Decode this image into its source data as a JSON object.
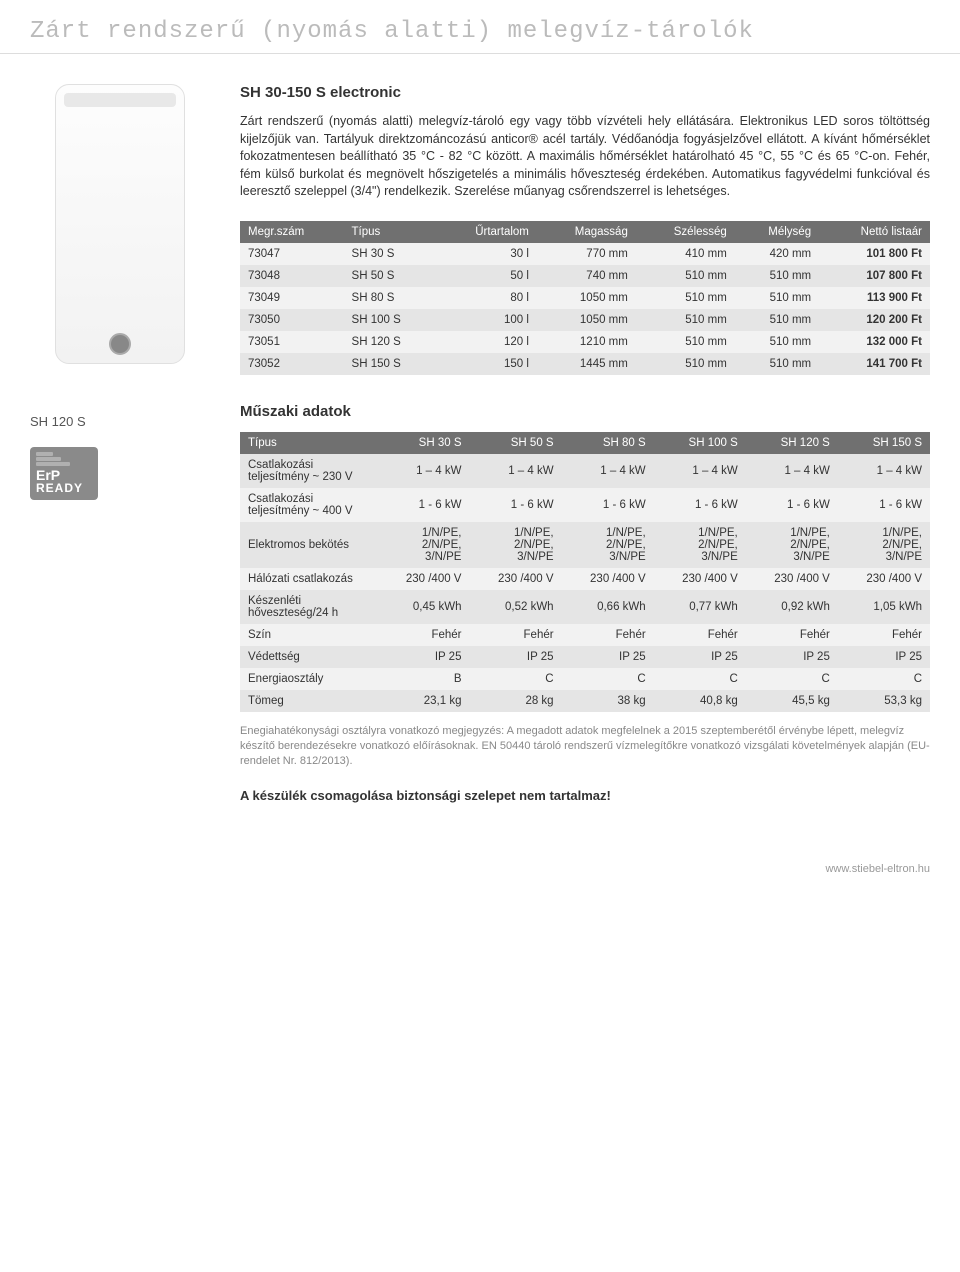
{
  "page_header": "Zárt rendszerű (nyomás alatti) melegvíz-tárolók",
  "product_title": "SH 30-150 S electronic",
  "description": "Zárt rendszerű (nyomás alatti) melegvíz-tároló egy vagy több vízvételi hely ellátására. Elektronikus LED soros töltöttség kijelzőjük van. Tartályuk direktzománcozású anticor® acél tartály. Védőanódja fogyásjelzővel ellátott. A kívánt hőmérséklet fokozatmentesen beállítható 35 °C - 82 °C között. A maximális hőmérséklet határolható 45 °C, 55 °C és 65 °C-on. Fehér, fém külső burkolat és megnövelt hőszigetelés a minimális hőveszteség érdekében. Automatikus fagyvédelmi funkcióval és leeresztő szeleppel (3/4\") rendelkezik. Szerelése műanyag csőrendszerrel is lehetséges.",
  "caption": "SH 120 S",
  "erp": {
    "label": "ErP",
    "ready": "READY"
  },
  "spec_table": {
    "headers": [
      "Megr.szám",
      "Típus",
      "Űrtartalom",
      "Magasság",
      "Szélesség",
      "Mélység",
      "Nettó listaár"
    ],
    "rows": [
      [
        "73047",
        "SH 30 S",
        "30 l",
        "770 mm",
        "410 mm",
        "420 mm",
        "101 800 Ft"
      ],
      [
        "73048",
        "SH 50 S",
        "50 l",
        "740 mm",
        "510 mm",
        "510 mm",
        "107 800 Ft"
      ],
      [
        "73049",
        "SH 80 S",
        "80 l",
        "1050 mm",
        "510 mm",
        "510 mm",
        "113 900 Ft"
      ],
      [
        "73050",
        "SH 100 S",
        "100 l",
        "1050 mm",
        "510 mm",
        "510 mm",
        "120 200 Ft"
      ],
      [
        "73051",
        "SH 120 S",
        "120 l",
        "1210 mm",
        "510 mm",
        "510 mm",
        "132 000 Ft"
      ],
      [
        "73052",
        "SH 150 S",
        "150 l",
        "1445 mm",
        "510 mm",
        "510 mm",
        "141 700 Ft"
      ]
    ]
  },
  "tech_title": "Műszaki adatok",
  "tech_table": {
    "headers": [
      "Típus",
      "SH 30 S",
      "SH 50 S",
      "SH 80 S",
      "SH 100 S",
      "SH 120 S",
      "SH 150 S"
    ],
    "rows": [
      [
        "Csatlakozási teljesítmény ~ 230 V",
        "1 – 4 kW",
        "1 – 4 kW",
        "1 – 4 kW",
        "1 – 4 kW",
        "1 – 4 kW",
        "1 – 4 kW"
      ],
      [
        "Csatlakozási teljesítmény ~ 400 V",
        "1 - 6 kW",
        "1 - 6 kW",
        "1 - 6 kW",
        "1 - 6 kW",
        "1 - 6 kW",
        "1 - 6 kW"
      ],
      [
        "Elektromos bekötés",
        "1/N/PE, 2/N/PE, 3/N/PE",
        "1/N/PE, 2/N/PE, 3/N/PE",
        "1/N/PE, 2/N/PE, 3/N/PE",
        "1/N/PE, 2/N/PE, 3/N/PE",
        "1/N/PE, 2/N/PE, 3/N/PE",
        "1/N/PE, 2/N/PE, 3/N/PE"
      ],
      [
        "Hálózati csatlakozás",
        "230 /400 V",
        "230 /400 V",
        "230 /400 V",
        "230 /400 V",
        "230 /400 V",
        "230 /400 V"
      ],
      [
        "Készenléti hőveszteség/24 h",
        "0,45 kWh",
        "0,52 kWh",
        "0,66 kWh",
        "0,77 kWh",
        "0,92 kWh",
        "1,05 kWh"
      ],
      [
        "Szín",
        "Fehér",
        "Fehér",
        "Fehér",
        "Fehér",
        "Fehér",
        "Fehér"
      ],
      [
        "Védettség",
        "IP 25",
        "IP 25",
        "IP 25",
        "IP 25",
        "IP 25",
        "IP 25"
      ],
      [
        "Energiaosztály",
        "B",
        "C",
        "C",
        "C",
        "C",
        "C"
      ],
      [
        "Tömeg",
        "23,1 kg",
        "28 kg",
        "38 kg",
        "40,8 kg",
        "45,5 kg",
        "53,3 kg"
      ]
    ]
  },
  "note": "Enegiahatékonysági osztályra vonatkozó megjegyzés: A megadott adatok megfelelnek a 2015 szeptemberétől érvénybe lépett, melegvíz készítő berendezésekre vonatkozó előírásoknak. EN 50440 tároló rendszerű vízmelegítőkre vonatkozó vizsgálati követelmények alapján (EU-rendelet Nr. 812/2013).",
  "warning": "A készülék csomagolása biztonsági szelepet nem tartalmaz!",
  "footer": "www.stiebel-eltron.hu",
  "colors": {
    "header_text": "#bbbbbb",
    "table_header_bg": "#707070",
    "row_odd_bg": "#f2f2f2",
    "row_even_bg": "#e5e5e5",
    "note_text": "#888888"
  }
}
